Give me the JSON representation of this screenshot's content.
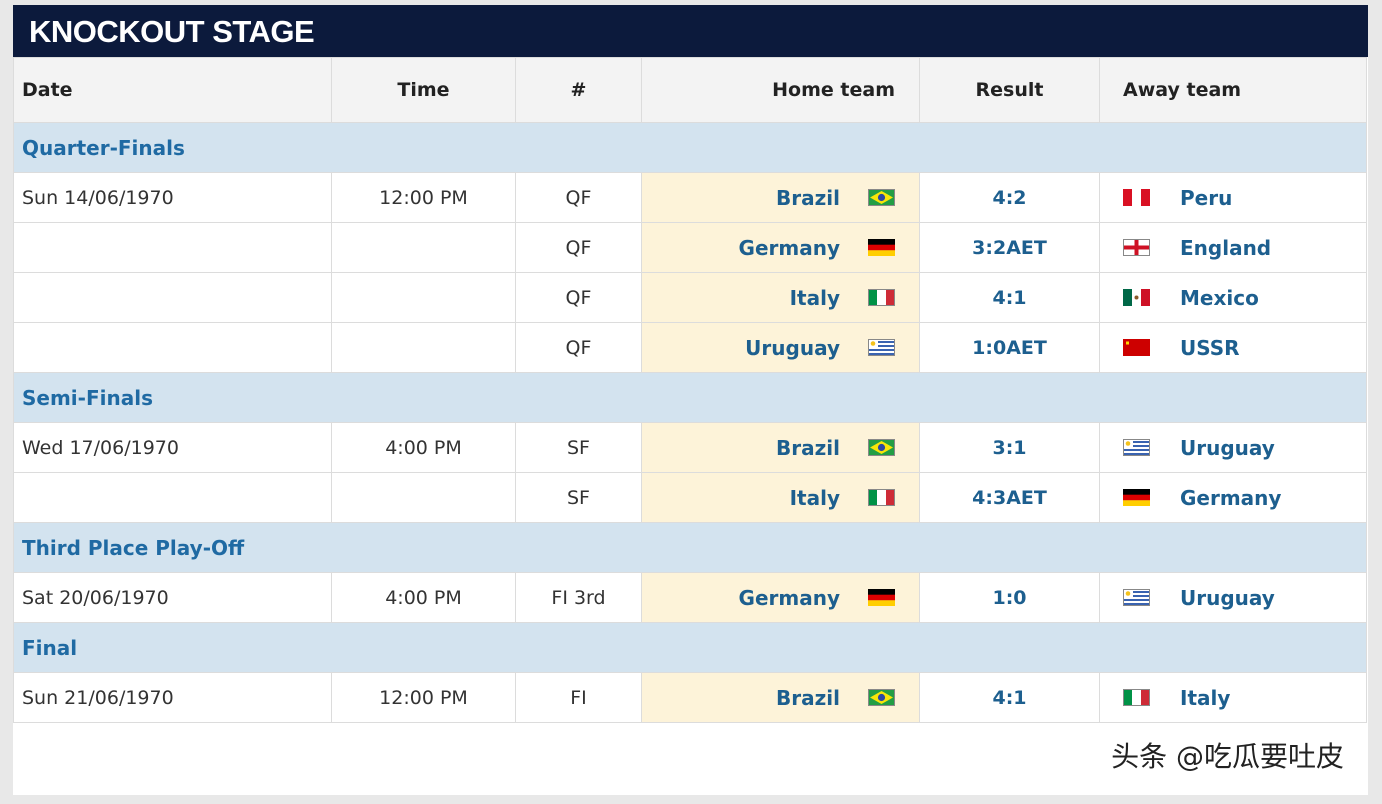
{
  "header": {
    "title": "KNOCKOUT STAGE"
  },
  "table": {
    "columns": [
      "Date",
      "Time",
      "#",
      "Home team",
      "Result",
      "Away team"
    ],
    "sections": [
      {
        "name": "Quarter-Finals",
        "matches": [
          {
            "date": "Sun 14/06/1970",
            "time": "12:00 PM",
            "code": "QF",
            "home": "Brazil",
            "result": "4:2",
            "away": "Peru"
          },
          {
            "code": "QF",
            "home": "Germany",
            "result": "3:2AET",
            "away": "England"
          },
          {
            "code": "QF",
            "home": "Italy",
            "result": "4:1",
            "away": "Mexico"
          },
          {
            "code": "QF",
            "home": "Uruguay",
            "result": "1:0AET",
            "away": "USSR"
          }
        ]
      },
      {
        "name": "Semi-Finals",
        "matches": [
          {
            "date": "Wed 17/06/1970",
            "time": "4:00 PM",
            "code": "SF",
            "home": "Brazil",
            "result": "3:1",
            "away": "Uruguay"
          },
          {
            "code": "SF",
            "home": "Italy",
            "result": "4:3AET",
            "away": "Germany"
          }
        ]
      },
      {
        "name": "Third Place Play-Off",
        "matches": [
          {
            "date": "Sat 20/06/1970",
            "time": "4:00 PM",
            "code": "FI 3rd",
            "home": "Germany",
            "result": "1:0",
            "away": "Uruguay"
          }
        ]
      },
      {
        "name": "Final",
        "matches": [
          {
            "date": "Sun 21/06/1970",
            "time": "12:00 PM",
            "code": "FI",
            "home": "Brazil",
            "result": "4:1",
            "away": "Italy"
          }
        ]
      }
    ]
  },
  "watermark": "头条 @吃瓜要吐皮"
}
